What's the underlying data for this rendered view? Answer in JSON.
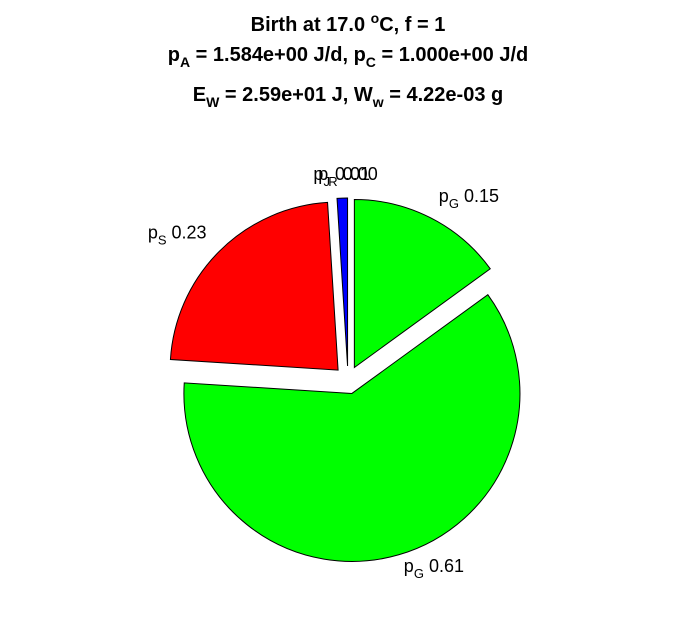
{
  "title": {
    "line1": {
      "prefix": "Birth at 17.0 ",
      "sup": "o",
      "suffix": "C, f = 1"
    },
    "line2": {
      "p1": "p",
      "p1sub": "A",
      "p1val": " = 1.584e+00 J/d, ",
      "p2": "p",
      "p2sub": "C",
      "p2val": " = 1.000e+00 J/d"
    },
    "line3": {
      "e": "E",
      "esub": "W",
      "eval": " = 2.59e+01 J, ",
      "w": "W",
      "wsub": "w",
      "wval": " = 4.22e-03 g"
    }
  },
  "chart_data": {
    "type": "pie",
    "start_angle_deg": 90,
    "direction": "counterclockwise",
    "exploded": true,
    "slices": [
      {
        "name": "p",
        "sub": "J",
        "value": 0.01,
        "label": "0.01",
        "color": "#0000ff"
      },
      {
        "name": "p",
        "sub": "S",
        "value": 0.23,
        "label": "0.23",
        "color": "#ff0000"
      },
      {
        "name": "p",
        "sub": "G",
        "value": 0.61,
        "label": "0.61",
        "color": "#00ff00"
      },
      {
        "name": "p",
        "sub": "G",
        "value": 0.15,
        "label": "0.15",
        "color": "#00ff00"
      },
      {
        "name": "p",
        "sub": "R",
        "value": 0.0,
        "label": "0.00",
        "color": "#ffff00"
      }
    ]
  }
}
